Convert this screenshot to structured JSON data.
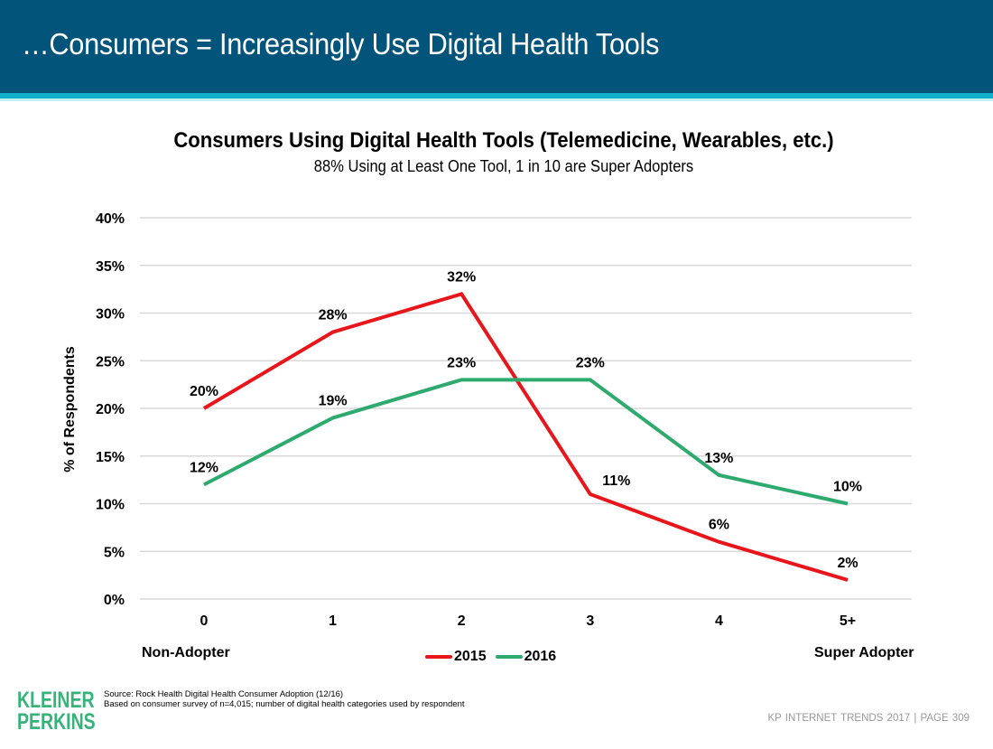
{
  "slide": {
    "title": "…Consumers = Increasingly Use Digital Health Tools",
    "colors": {
      "header": "#03547a",
      "stripe": "#12b0c8",
      "logo": "#37b27a"
    }
  },
  "chart_data": {
    "type": "line",
    "title": "Consumers Using Digital Health Tools (Telemedicine, Wearables, etc.)",
    "subtitle": "88% Using at Least One Tool,  1 in 10 are Super Adopters",
    "xlabel": "",
    "ylabel": "% of Respondents",
    "categories": [
      "0",
      "1",
      "2",
      "3",
      "4",
      "5+"
    ],
    "ylim": [
      0,
      40
    ],
    "yticks": [
      0,
      5,
      10,
      15,
      20,
      25,
      30,
      35,
      40
    ],
    "ytick_labels": [
      "0%",
      "5%",
      "10%",
      "15%",
      "20%",
      "25%",
      "30%",
      "35%",
      "40%"
    ],
    "grid": true,
    "legend_position": "bottom-center",
    "x_end_labels": {
      "left": "Non-Adopter",
      "right": "Super Adopter"
    },
    "series": [
      {
        "name": "2015",
        "color": "#e8151b",
        "values": [
          20,
          28,
          32,
          11,
          6,
          2
        ],
        "labels": [
          "20%",
          "28%",
          "32%",
          "11%",
          "6%",
          "2%"
        ]
      },
      {
        "name": "2016",
        "color": "#2faa6f",
        "values": [
          12,
          19,
          23,
          23,
          13,
          10
        ],
        "labels": [
          "12%",
          "19%",
          "23%",
          "23%",
          "13%",
          "10%"
        ]
      }
    ]
  },
  "footer": {
    "logo_line1": "KLEINER",
    "logo_line2": "PERKINS",
    "source_line1": "Source: Rock Health Digital Health Consumer Adoption (12/16)",
    "source_line2": "Based on consumer survey of n=4,015; number of digital health categories used by respondent",
    "page_label": "KP INTERNET TRENDS 2017   |   PAGE 309"
  }
}
